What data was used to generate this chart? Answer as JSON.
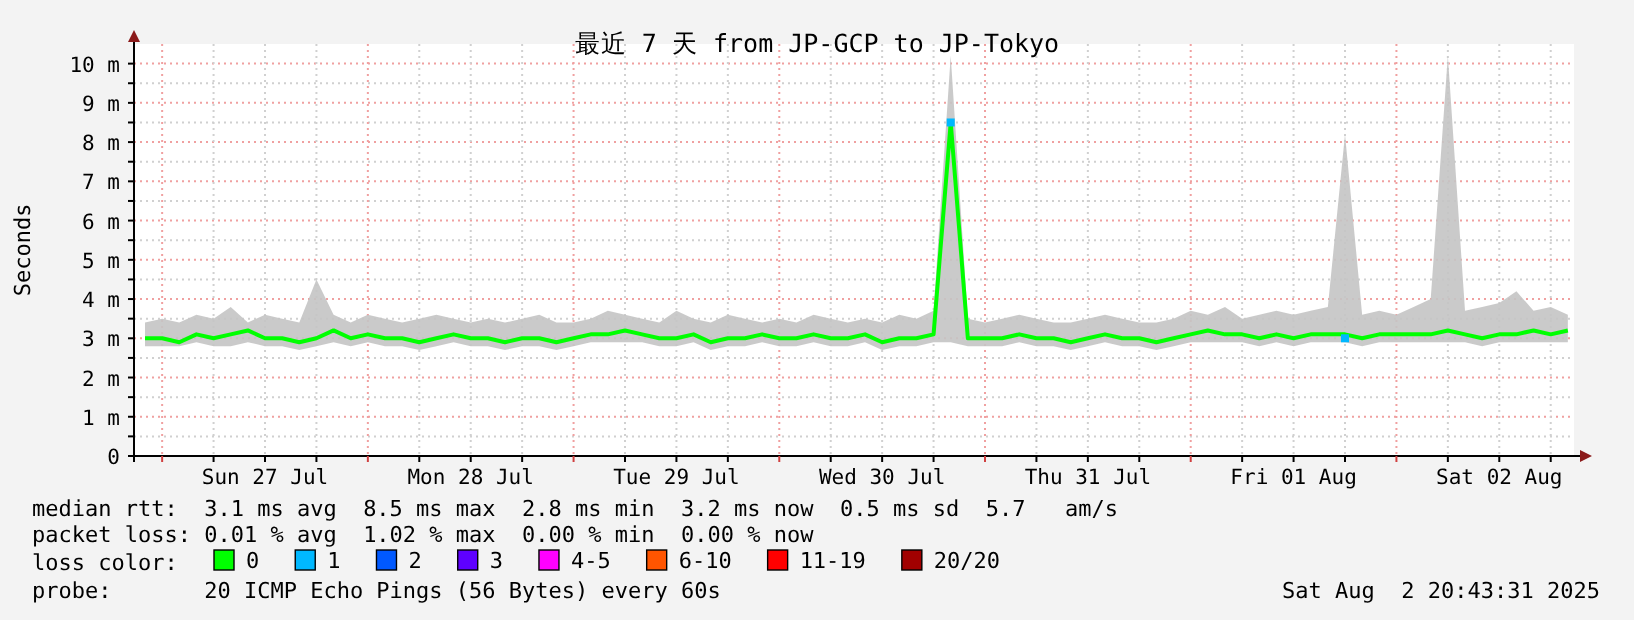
{
  "chart_data": {
    "type": "line",
    "title": "最近 7 天 from JP-GCP to JP-Tokyo",
    "ylabel": "Seconds",
    "legend_title": "loss color:",
    "legend": "bottom",
    "grid": true,
    "xlim": [
      "2025-07-26T20:43",
      "2025-08-02T20:43"
    ],
    "xticks": [
      {
        "value": "2025-07-27T00:00",
        "label": null
      },
      {
        "value": "2025-07-27T06:00",
        "label": null
      },
      {
        "value": "2025-07-27T12:00",
        "label": "Sun 27 Jul"
      },
      {
        "value": "2025-07-27T18:00",
        "label": null
      },
      {
        "value": "2025-07-28T00:00",
        "label": null
      },
      {
        "value": "2025-07-28T06:00",
        "label": null
      },
      {
        "value": "2025-07-28T12:00",
        "label": "Mon 28 Jul"
      },
      {
        "value": "2025-07-28T18:00",
        "label": null
      },
      {
        "value": "2025-07-29T00:00",
        "label": null
      },
      {
        "value": "2025-07-29T06:00",
        "label": null
      },
      {
        "value": "2025-07-29T12:00",
        "label": "Tue 29 Jul"
      },
      {
        "value": "2025-07-29T18:00",
        "label": null
      },
      {
        "value": "2025-07-30T00:00",
        "label": null
      },
      {
        "value": "2025-07-30T06:00",
        "label": null
      },
      {
        "value": "2025-07-30T12:00",
        "label": "Wed 30 Jul"
      },
      {
        "value": "2025-07-30T18:00",
        "label": null
      },
      {
        "value": "2025-07-31T00:00",
        "label": null
      },
      {
        "value": "2025-07-31T06:00",
        "label": null
      },
      {
        "value": "2025-07-31T12:00",
        "label": "Thu 31 Jul"
      },
      {
        "value": "2025-07-31T18:00",
        "label": null
      },
      {
        "value": "2025-08-01T00:00",
        "label": null
      },
      {
        "value": "2025-08-01T06:00",
        "label": null
      },
      {
        "value": "2025-08-01T12:00",
        "label": "Fri 01 Aug"
      },
      {
        "value": "2025-08-01T18:00",
        "label": null
      },
      {
        "value": "2025-08-02T00:00",
        "label": null
      },
      {
        "value": "2025-08-02T06:00",
        "label": null
      },
      {
        "value": "2025-08-02T12:00",
        "label": "Sat 02 Aug"
      },
      {
        "value": "2025-08-02T18:00",
        "label": null
      }
    ],
    "ylim": [
      0,
      10.5
    ],
    "yticks": [
      0,
      {
        "value": 0.5,
        "label": null
      },
      {
        "value": 1,
        "label": "1 m"
      },
      {
        "value": 1.5,
        "label": null
      },
      {
        "value": 2,
        "label": "2 m"
      },
      {
        "value": 2.5,
        "label": null
      },
      {
        "value": 3,
        "label": "3 m"
      },
      {
        "value": 3.5,
        "label": null
      },
      {
        "value": 4,
        "label": "4 m"
      },
      {
        "value": 4.5,
        "label": null
      },
      {
        "value": 5,
        "label": "5 m"
      },
      {
        "value": 5.5,
        "label": null
      },
      {
        "value": 6,
        "label": "6 m"
      },
      {
        "value": 6.5,
        "label": null
      },
      {
        "value": 7,
        "label": "7 m"
      },
      {
        "value": 7.5,
        "label": null
      },
      {
        "value": 8,
        "label": "8 m"
      },
      {
        "value": 8.5,
        "label": null
      },
      {
        "value": 9,
        "label": "9 m"
      },
      {
        "value": 9.5,
        "label": null
      },
      {
        "value": 10,
        "label": "10 m"
      }
    ],
    "x": [
      "2025-07-26T22:00",
      "2025-07-27T00:00",
      "2025-07-27T02:00",
      "2025-07-27T04:00",
      "2025-07-27T06:00",
      "2025-07-27T08:00",
      "2025-07-27T10:00",
      "2025-07-27T12:00",
      "2025-07-27T14:00",
      "2025-07-27T16:00",
      "2025-07-27T18:00",
      "2025-07-27T20:00",
      "2025-07-27T22:00",
      "2025-07-28T00:00",
      "2025-07-28T02:00",
      "2025-07-28T04:00",
      "2025-07-28T06:00",
      "2025-07-28T08:00",
      "2025-07-28T10:00",
      "2025-07-28T12:00",
      "2025-07-28T14:00",
      "2025-07-28T16:00",
      "2025-07-28T18:00",
      "2025-07-28T20:00",
      "2025-07-28T22:00",
      "2025-07-29T00:00",
      "2025-07-29T02:00",
      "2025-07-29T04:00",
      "2025-07-29T06:00",
      "2025-07-29T08:00",
      "2025-07-29T10:00",
      "2025-07-29T12:00",
      "2025-07-29T14:00",
      "2025-07-29T16:00",
      "2025-07-29T18:00",
      "2025-07-29T20:00",
      "2025-07-29T22:00",
      "2025-07-30T00:00",
      "2025-07-30T02:00",
      "2025-07-30T04:00",
      "2025-07-30T06:00",
      "2025-07-30T08:00",
      "2025-07-30T10:00",
      "2025-07-30T12:00",
      "2025-07-30T14:00",
      "2025-07-30T16:00",
      "2025-07-30T18:00",
      "2025-07-30T20:00",
      "2025-07-30T22:00",
      "2025-07-31T00:00",
      "2025-07-31T02:00",
      "2025-07-31T04:00",
      "2025-07-31T06:00",
      "2025-07-31T08:00",
      "2025-07-31T10:00",
      "2025-07-31T12:00",
      "2025-07-31T14:00",
      "2025-07-31T16:00",
      "2025-07-31T18:00",
      "2025-07-31T20:00",
      "2025-07-31T22:00",
      "2025-08-01T00:00",
      "2025-08-01T02:00",
      "2025-08-01T04:00",
      "2025-08-01T06:00",
      "2025-08-01T08:00",
      "2025-08-01T10:00",
      "2025-08-01T12:00",
      "2025-08-01T14:00",
      "2025-08-01T16:00",
      "2025-08-01T18:00",
      "2025-08-01T20:00",
      "2025-08-01T22:00",
      "2025-08-02T00:00",
      "2025-08-02T02:00",
      "2025-08-02T04:00",
      "2025-08-02T06:00",
      "2025-08-02T08:00",
      "2025-08-02T10:00",
      "2025-08-02T12:00",
      "2025-08-02T14:00",
      "2025-08-02T16:00",
      "2025-08-02T18:00",
      "2025-08-02T20:00"
    ],
    "series": [
      {
        "name": "0",
        "color": "#00ff00",
        "values": [
          3.0,
          3.0,
          2.9,
          3.1,
          3.0,
          3.1,
          3.2,
          3.0,
          3.0,
          2.9,
          3.0,
          3.2,
          3.0,
          3.1,
          3.0,
          3.0,
          2.9,
          3.0,
          3.1,
          3.0,
          3.0,
          2.9,
          3.0,
          3.0,
          2.9,
          3.0,
          3.1,
          3.1,
          3.2,
          3.1,
          3.0,
          3.0,
          3.1,
          2.9,
          3.0,
          3.0,
          3.1,
          3.0,
          3.0,
          3.1,
          3.0,
          3.0,
          3.1,
          2.9,
          3.0,
          3.0,
          3.1,
          8.5,
          3.0,
          3.0,
          3.0,
          3.1,
          3.0,
          3.0,
          2.9,
          3.0,
          3.1,
          3.0,
          3.0,
          2.9,
          3.0,
          3.1,
          3.2,
          3.1,
          3.1,
          3.0,
          3.1,
          3.0,
          3.1,
          3.1,
          3.1,
          3.0,
          3.1,
          3.1,
          3.1,
          3.1,
          3.2,
          3.1,
          3.0,
          3.1,
          3.1,
          3.2,
          3.1,
          3.2
        ],
        "lower": [
          2.8,
          2.8,
          2.8,
          2.9,
          2.8,
          2.8,
          2.9,
          2.8,
          2.8,
          2.7,
          2.8,
          2.9,
          2.8,
          2.9,
          2.8,
          2.8,
          2.7,
          2.8,
          2.9,
          2.8,
          2.8,
          2.7,
          2.8,
          2.8,
          2.7,
          2.8,
          2.9,
          2.9,
          2.9,
          2.9,
          2.8,
          2.8,
          2.9,
          2.7,
          2.8,
          2.8,
          2.9,
          2.8,
          2.8,
          2.9,
          2.8,
          2.8,
          2.9,
          2.7,
          2.8,
          2.8,
          2.9,
          2.9,
          2.8,
          2.8,
          2.8,
          2.9,
          2.8,
          2.8,
          2.7,
          2.8,
          2.9,
          2.8,
          2.8,
          2.7,
          2.8,
          2.9,
          2.9,
          2.9,
          2.9,
          2.8,
          2.9,
          2.8,
          2.9,
          2.9,
          2.9,
          2.8,
          2.9,
          2.9,
          2.9,
          2.9,
          2.9,
          2.9,
          2.8,
          2.9,
          2.9,
          2.9,
          2.9,
          2.9
        ],
        "upper": [
          3.4,
          3.5,
          3.4,
          3.6,
          3.5,
          3.8,
          3.4,
          3.6,
          3.5,
          3.4,
          4.5,
          3.6,
          3.4,
          3.6,
          3.5,
          3.4,
          3.5,
          3.6,
          3.5,
          3.4,
          3.5,
          3.4,
          3.5,
          3.6,
          3.4,
          3.4,
          3.5,
          3.7,
          3.6,
          3.5,
          3.4,
          3.7,
          3.5,
          3.4,
          3.6,
          3.5,
          3.4,
          3.5,
          3.4,
          3.6,
          3.5,
          3.4,
          3.5,
          3.4,
          3.6,
          3.5,
          3.7,
          10.2,
          3.5,
          3.4,
          3.5,
          3.6,
          3.5,
          3.4,
          3.4,
          3.5,
          3.6,
          3.5,
          3.4,
          3.4,
          3.5,
          3.7,
          3.6,
          3.8,
          3.5,
          3.6,
          3.7,
          3.6,
          3.7,
          3.8,
          8.2,
          3.6,
          3.7,
          3.6,
          3.8,
          4.0,
          10.2,
          3.7,
          3.8,
          3.9,
          4.2,
          3.7,
          3.8,
          3.6
        ]
      },
      {
        "name": "1",
        "color": "#00b8ff",
        "type": "scatter",
        "marker": "square",
        "x": [
          "2025-07-30T20:00",
          "2025-08-01T18:00"
        ],
        "values": [
          8.5,
          3.0
        ]
      },
      {
        "name": "2",
        "color": "#0059ff",
        "type": "scatter",
        "marker": "square",
        "values": [
          null,
          null,
          null,
          null,
          null,
          null,
          null,
          null,
          null,
          null,
          null,
          null,
          null,
          null,
          null,
          null,
          null,
          null,
          null,
          null,
          null,
          null,
          null,
          null,
          null,
          null,
          null,
          null,
          null,
          null,
          null,
          null,
          null,
          null,
          null,
          null,
          null,
          null,
          null,
          null,
          null,
          null,
          null,
          null,
          null,
          null,
          null,
          null,
          null,
          null,
          null,
          null,
          null,
          null,
          null,
          null,
          null,
          null,
          null,
          null,
          null,
          null,
          null,
          null,
          null,
          null,
          null,
          null,
          null,
          null,
          null,
          null,
          null,
          null,
          null,
          null,
          null,
          null,
          null,
          null,
          null,
          null,
          null,
          null
        ]
      },
      {
        "name": "3",
        "color": "#5e00ff",
        "type": "scatter",
        "marker": "square",
        "values": [
          null,
          null,
          null,
          null,
          null,
          null,
          null,
          null,
          null,
          null,
          null,
          null,
          null,
          null,
          null,
          null,
          null,
          null,
          null,
          null,
          null,
          null,
          null,
          null,
          null,
          null,
          null,
          null,
          null,
          null,
          null,
          null,
          null,
          null,
          null,
          null,
          null,
          null,
          null,
          null,
          null,
          null,
          null,
          null,
          null,
          null,
          null,
          null,
          null,
          null,
          null,
          null,
          null,
          null,
          null,
          null,
          null,
          null,
          null,
          null,
          null,
          null,
          null,
          null,
          null,
          null,
          null,
          null,
          null,
          null,
          null,
          null,
          null,
          null,
          null,
          null,
          null,
          null,
          null,
          null,
          null,
          null,
          null,
          null
        ]
      },
      {
        "name": "4-5",
        "color": "#ff00ff",
        "type": "scatter",
        "marker": "square",
        "values": [
          null,
          null,
          null,
          null,
          null,
          null,
          null,
          null,
          null,
          null,
          null,
          null,
          null,
          null,
          null,
          null,
          null,
          null,
          null,
          null,
          null,
          null,
          null,
          null,
          null,
          null,
          null,
          null,
          null,
          null,
          null,
          null,
          null,
          null,
          null,
          null,
          null,
          null,
          null,
          null,
          null,
          null,
          null,
          null,
          null,
          null,
          null,
          null,
          null,
          null,
          null,
          null,
          null,
          null,
          null,
          null,
          null,
          null,
          null,
          null,
          null,
          null,
          null,
          null,
          null,
          null,
          null,
          null,
          null,
          null,
          null,
          null,
          null,
          null,
          null,
          null,
          null,
          null,
          null,
          null,
          null,
          null,
          null,
          null
        ]
      },
      {
        "name": "6-10",
        "color": "#ff5500",
        "type": "scatter",
        "marker": "square",
        "values": [
          null,
          null,
          null,
          null,
          null,
          null,
          null,
          null,
          null,
          null,
          null,
          null,
          null,
          null,
          null,
          null,
          null,
          null,
          null,
          null,
          null,
          null,
          null,
          null,
          null,
          null,
          null,
          null,
          null,
          null,
          null,
          null,
          null,
          null,
          null,
          null,
          null,
          null,
          null,
          null,
          null,
          null,
          null,
          null,
          null,
          null,
          null,
          null,
          null,
          null,
          null,
          null,
          null,
          null,
          null,
          null,
          null,
          null,
          null,
          null,
          null,
          null,
          null,
          null,
          null,
          null,
          null,
          null,
          null,
          null,
          null,
          null,
          null,
          null,
          null,
          null,
          null,
          null,
          null,
          null,
          null,
          null,
          null,
          null
        ]
      },
      {
        "name": "11-19",
        "color": "#ff0000",
        "type": "scatter",
        "marker": "square",
        "values": [
          null,
          null,
          null,
          null,
          null,
          null,
          null,
          null,
          null,
          null,
          null,
          null,
          null,
          null,
          null,
          null,
          null,
          null,
          null,
          null,
          null,
          null,
          null,
          null,
          null,
          null,
          null,
          null,
          null,
          null,
          null,
          null,
          null,
          null,
          null,
          null,
          null,
          null,
          null,
          null,
          null,
          null,
          null,
          null,
          null,
          null,
          null,
          null,
          null,
          null,
          null,
          null,
          null,
          null,
          null,
          null,
          null,
          null,
          null,
          null,
          null,
          null,
          null,
          null,
          null,
          null,
          null,
          null,
          null,
          null,
          null,
          null,
          null,
          null,
          null,
          null,
          null,
          null,
          null,
          null,
          null,
          null,
          null,
          null
        ]
      },
      {
        "name": "20/20",
        "color": "#a10000",
        "type": "scatter",
        "marker": "square",
        "values": [
          null,
          null,
          null,
          null,
          null,
          null,
          null,
          null,
          null,
          null,
          null,
          null,
          null,
          null,
          null,
          null,
          null,
          null,
          null,
          null,
          null,
          null,
          null,
          null,
          null,
          null,
          null,
          null,
          null,
          null,
          null,
          null,
          null,
          null,
          null,
          null,
          null,
          null,
          null,
          null,
          null,
          null,
          null,
          null,
          null,
          null,
          null,
          null,
          null,
          null,
          null,
          null,
          null,
          null,
          null,
          null,
          null,
          null,
          null,
          null,
          null,
          null,
          null,
          null,
          null,
          null,
          null,
          null,
          null,
          null,
          null,
          null,
          null,
          null,
          null,
          null,
          null,
          null,
          null,
          null,
          null,
          null,
          null,
          null
        ]
      }
    ],
    "annotations": [
      "median rtt:  3.1 ms avg  8.5 ms max  2.8 ms min  3.2 ms now  0.5 ms sd  5.7   am/s",
      "packet loss: 0.01 % avg  1.02 % max  0.00 % min  0.00 % now",
      "probe:       20 ICMP Echo Pings (56 Bytes) every 60s",
      "Sat Aug  2 20:43:31 2025"
    ]
  }
}
